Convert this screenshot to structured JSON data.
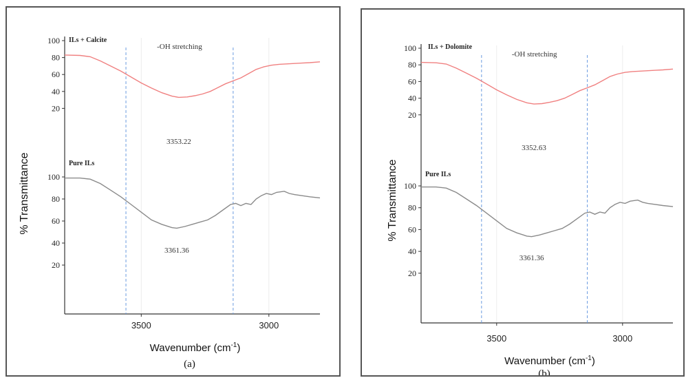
{
  "chart_data": [
    {
      "type": "line",
      "panel_label": "(a)",
      "xlabel": "Wavenumber (cm",
      "xlabel_sup": "-1",
      "xlabel_close": ")",
      "ylabel": "% Transmittance",
      "xlim": [
        3800,
        2800
      ],
      "x_ticks": [
        "3500",
        "3000"
      ],
      "y_ticks_upper": [
        "100",
        "80",
        "60",
        "40",
        "20"
      ],
      "y_ticks_lower": [
        "100",
        "80",
        "60",
        "40",
        "20"
      ],
      "region_label": "-OH stretching",
      "region": [
        3560,
        3140
      ],
      "series": [
        {
          "name": "ILs + Calcite",
          "color": "#f08080",
          "peak_label": "3353.22",
          "x": [
            3800,
            3740,
            3700,
            3660,
            3620,
            3580,
            3540,
            3500,
            3460,
            3420,
            3380,
            3353,
            3320,
            3290,
            3260,
            3230,
            3200,
            3170,
            3140,
            3110,
            3080,
            3050,
            3020,
            2990,
            2960,
            2930,
            2900,
            2870,
            2840,
            2800
          ],
          "y": [
            83,
            82.5,
            81,
            76,
            70,
            64,
            57,
            50,
            44,
            38.5,
            34.5,
            33,
            33.5,
            35,
            37,
            40,
            44.5,
            49,
            52.5,
            56,
            61,
            66,
            69,
            71,
            72,
            72.5,
            73,
            73.5,
            74,
            75
          ]
        },
        {
          "name": "Pure ILs",
          "color": "#8a8a8a",
          "peak_label": "3361.36",
          "x": [
            3800,
            3740,
            3700,
            3660,
            3620,
            3580,
            3540,
            3500,
            3460,
            3420,
            3380,
            3361,
            3330,
            3300,
            3270,
            3240,
            3210,
            3180,
            3150,
            3130,
            3110,
            3090,
            3070,
            3050,
            3030,
            3010,
            2990,
            2970,
            2940,
            2920,
            2900,
            2870,
            2840,
            2800
          ],
          "y": [
            99,
            99,
            98,
            94,
            88,
            82,
            75,
            68,
            61,
            57,
            54,
            53.5,
            55,
            57,
            59,
            61,
            65,
            70,
            75,
            76,
            74,
            76,
            75,
            80,
            83,
            85,
            84,
            86,
            87,
            85,
            84,
            83,
            82,
            81
          ]
        }
      ]
    },
    {
      "type": "line",
      "panel_label": "(b)",
      "xlabel": "Wavenumber (cm",
      "xlabel_sup": "-1",
      "xlabel_close": ")",
      "ylabel": "% Transmittance",
      "xlim": [
        3800,
        2800
      ],
      "x_ticks": [
        "3500",
        "3000"
      ],
      "y_ticks_upper": [
        "100",
        "80",
        "60",
        "40",
        "20"
      ],
      "y_ticks_lower": [
        "100",
        "80",
        "60",
        "40",
        "20"
      ],
      "region_label": "-OH stretching",
      "region": [
        3560,
        3140
      ],
      "series": [
        {
          "name": "ILs + Dolomite",
          "color": "#f08080",
          "peak_label": "3352.63",
          "x": [
            3800,
            3740,
            3700,
            3660,
            3620,
            3580,
            3540,
            3500,
            3460,
            3420,
            3380,
            3352,
            3320,
            3290,
            3260,
            3230,
            3200,
            3170,
            3140,
            3110,
            3080,
            3050,
            3020,
            2990,
            2960,
            2930,
            2900,
            2870,
            2840,
            2800
          ],
          "y": [
            83,
            82.5,
            81,
            76,
            70,
            64,
            57,
            50,
            44,
            38.5,
            34.5,
            33,
            33.5,
            35,
            37,
            40,
            44.5,
            49,
            52.5,
            56,
            61,
            66,
            69,
            71,
            72,
            72.5,
            73,
            73.5,
            74,
            75
          ]
        },
        {
          "name": "Pure ILs",
          "color": "#8a8a8a",
          "peak_label": "3361.36",
          "x": [
            3800,
            3740,
            3700,
            3660,
            3620,
            3580,
            3540,
            3500,
            3460,
            3420,
            3380,
            3361,
            3330,
            3300,
            3270,
            3240,
            3210,
            3180,
            3150,
            3130,
            3110,
            3090,
            3070,
            3050,
            3030,
            3010,
            2990,
            2970,
            2940,
            2920,
            2900,
            2870,
            2840,
            2800
          ],
          "y": [
            99,
            99,
            98,
            94,
            88,
            82,
            75,
            68,
            61,
            57,
            54,
            53.5,
            55,
            57,
            59,
            61,
            65,
            70,
            75,
            76,
            74,
            76,
            75,
            80,
            83,
            85,
            84,
            86,
            87,
            85,
            84,
            83,
            82,
            81
          ]
        }
      ]
    }
  ]
}
